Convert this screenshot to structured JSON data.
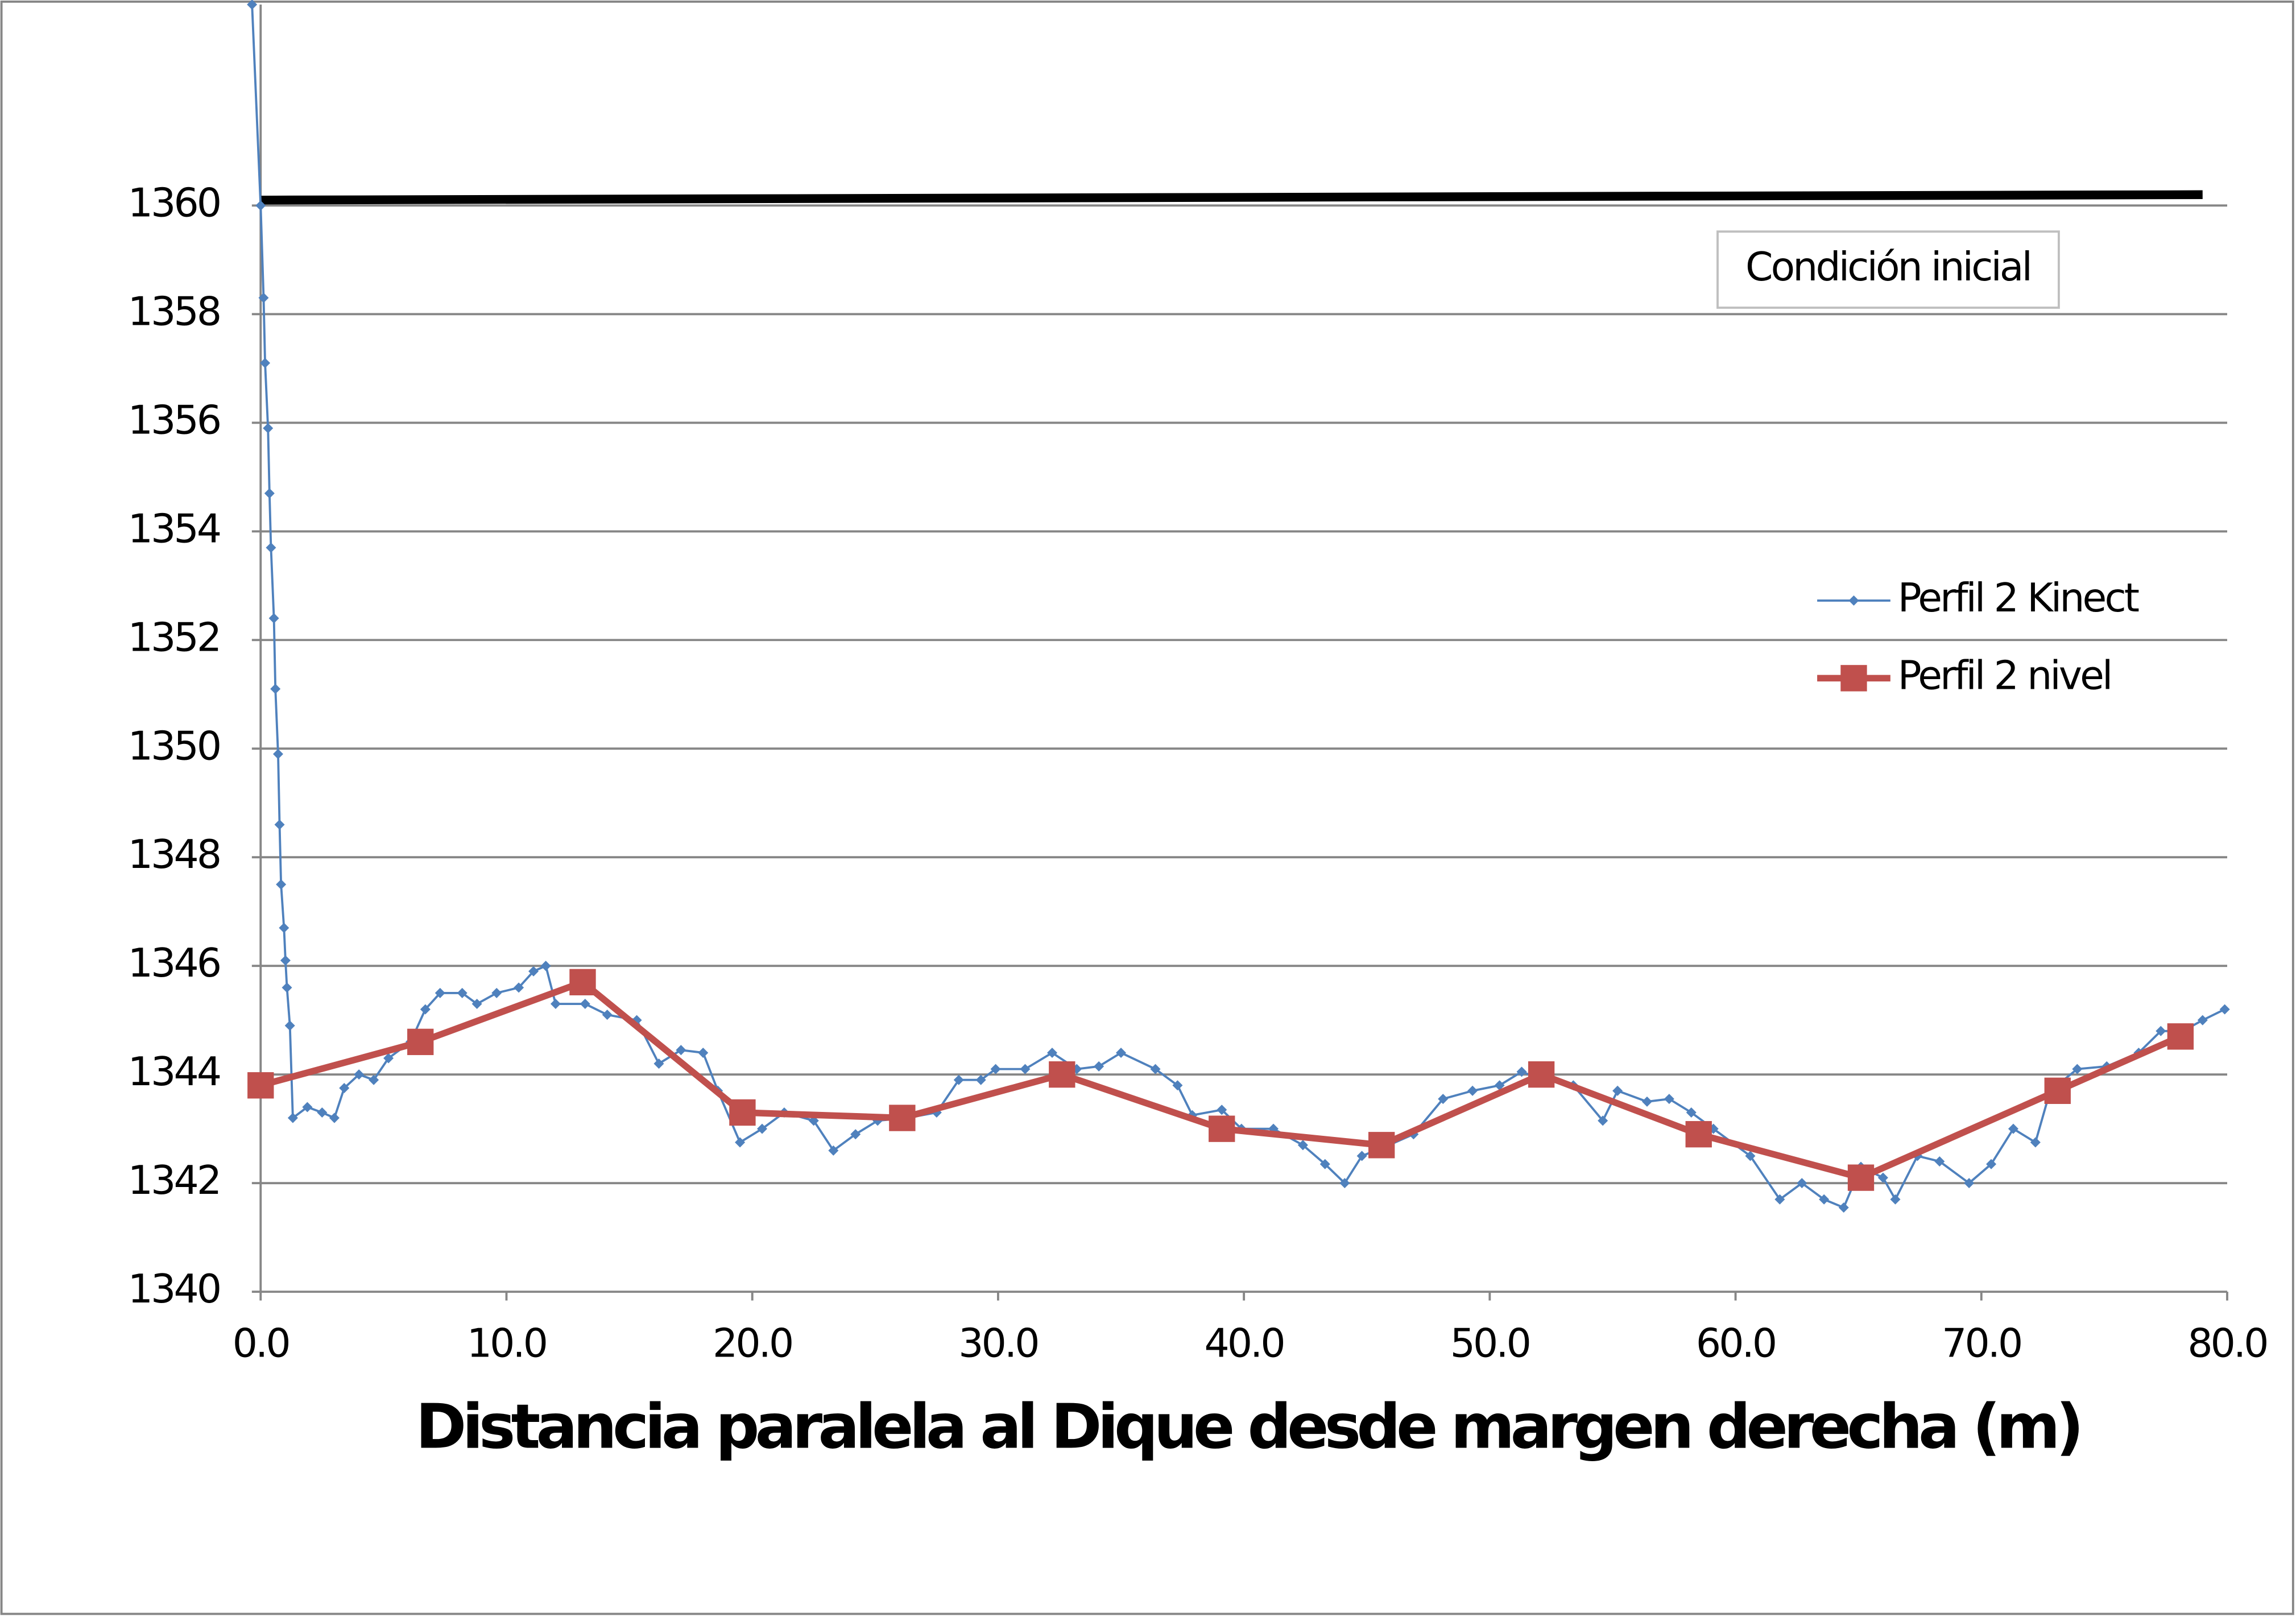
{
  "chart_data": {
    "type": "line",
    "x_label": "Distancia paralela al Dique desde margen derecha (m)",
    "xlim": [
      0,
      80
    ],
    "xticks": [
      {
        "value": 0,
        "label": "0.0"
      },
      {
        "value": 10,
        "label": "10.0"
      },
      {
        "value": 20,
        "label": "20.0"
      },
      {
        "value": 30,
        "label": "30.0"
      },
      {
        "value": 40,
        "label": "40.0"
      },
      {
        "value": 50,
        "label": "50.0"
      },
      {
        "value": 60,
        "label": "60.0"
      },
      {
        "value": 70,
        "label": "70.0"
      },
      {
        "value": 80,
        "label": "80.0"
      }
    ],
    "ylim": [
      1340,
      1363.7
    ],
    "yticks": [
      1340,
      1342,
      1344,
      1346,
      1348,
      1350,
      1352,
      1354,
      1356,
      1358,
      1360
    ],
    "grid": true,
    "series": [
      {
        "name": "Condición inicial",
        "color": "#000000",
        "x": [
          0,
          79
        ],
        "values": [
          1360.1,
          1360.2
        ]
      },
      {
        "name": "Perfil 2 Kinect",
        "color": "#4f81bd",
        "marker": "diamond",
        "x": [
          -0.35,
          0,
          0.12,
          0.18,
          0.3,
          0.36,
          0.42,
          0.54,
          0.6,
          0.71,
          0.77,
          0.83,
          0.95,
          1.01,
          1.07,
          1.19,
          1.31,
          1.9,
          2.5,
          3.0,
          3.4,
          4.0,
          4.6,
          5.2,
          6.1,
          6.7,
          7.3,
          8.2,
          8.8,
          9.6,
          10.5,
          11.1,
          11.6,
          12.0,
          13.2,
          14.1,
          15.3,
          16.2,
          17.1,
          18.0,
          18.6,
          19.5,
          20.4,
          21.3,
          22.5,
          23.3,
          24.2,
          25.1,
          26.3,
          27.5,
          28.4,
          29.3,
          29.9,
          31.1,
          32.2,
          33.2,
          34.1,
          35.0,
          36.4,
          37.3,
          37.9,
          39.1,
          39.9,
          41.2,
          42.4,
          43.3,
          44.1,
          44.8,
          45.9,
          46.9,
          48.1,
          49.3,
          50.4,
          51.3,
          52.2,
          53.4,
          54.6,
          55.2,
          56.4,
          57.3,
          58.2,
          59.1,
          60.6,
          61.8,
          62.7,
          63.6,
          64.4,
          65.1,
          66.0,
          66.5,
          67.4,
          68.3,
          69.5,
          70.4,
          71.3,
          72.2,
          72.8,
          73.9,
          75.1,
          76.4,
          77.3,
          78.2,
          79.0,
          79.9
        ],
        "values": [
          1363.7,
          1360.0,
          1358.3,
          1357.1,
          1355.9,
          1354.7,
          1353.7,
          1352.4,
          1351.1,
          1349.9,
          1348.6,
          1347.5,
          1346.7,
          1346.1,
          1345.6,
          1344.9,
          1343.2,
          1343.4,
          1343.3,
          1343.2,
          1343.75,
          1344.0,
          1343.9,
          1344.3,
          1344.6,
          1345.2,
          1345.5,
          1345.5,
          1345.3,
          1345.5,
          1345.6,
          1345.9,
          1346.0,
          1345.3,
          1345.3,
          1345.1,
          1345.0,
          1344.2,
          1344.45,
          1344.4,
          1343.7,
          1342.75,
          1343.0,
          1343.3,
          1343.15,
          1342.6,
          1342.9,
          1343.15,
          1343.2,
          1343.3,
          1343.9,
          1343.9,
          1344.1,
          1344.1,
          1344.4,
          1344.1,
          1344.15,
          1344.4,
          1344.1,
          1343.8,
          1343.25,
          1343.35,
          1343.0,
          1343.0,
          1342.7,
          1342.35,
          1342.0,
          1342.5,
          1342.7,
          1342.9,
          1343.55,
          1343.7,
          1343.8,
          1344.05,
          1343.9,
          1343.8,
          1343.15,
          1343.7,
          1343.5,
          1343.55,
          1343.3,
          1343.0,
          1342.5,
          1341.7,
          1342.0,
          1341.7,
          1341.55,
          1342.3,
          1342.1,
          1341.7,
          1342.5,
          1342.4,
          1342.0,
          1342.35,
          1343.0,
          1342.75,
          1343.7,
          1344.1,
          1344.15,
          1344.4,
          1344.8,
          1344.8,
          1345.0,
          1345.2
        ]
      },
      {
        "name": "Perfil 2 nivel",
        "color": "#c0504d",
        "marker": "square",
        "x": [
          0,
          6.5,
          13.1,
          19.6,
          26.1,
          32.6,
          39.1,
          45.6,
          52.1,
          58.5,
          65.1,
          73.1,
          78.1
        ],
        "values": [
          1343.8,
          1344.6,
          1345.7,
          1343.3,
          1343.2,
          1344.0,
          1343.0,
          1342.7,
          1344.0,
          1342.9,
          1342.1,
          1343.7,
          1344.7
        ]
      }
    ]
  }
}
